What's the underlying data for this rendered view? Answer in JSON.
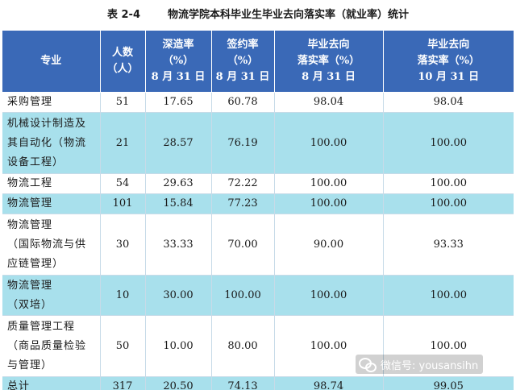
{
  "caption": {
    "number": "表 2-4",
    "title": "物流学院本科毕业生毕业去向落实率（就业率）统计"
  },
  "headers": [
    [
      "专业"
    ],
    [
      "人数",
      "（人）"
    ],
    [
      "深造率",
      "（%）",
      "8 月 31 日"
    ],
    [
      "签约率",
      "（%）",
      "8 月 31 日"
    ],
    [
      "毕业去向",
      "落实率（%）",
      "8 月 31 日"
    ],
    [
      "毕业去向",
      "落实率（%）",
      "10 月 31 日"
    ]
  ],
  "rows": [
    {
      "name": "采购管理",
      "count": "51",
      "further_study": "17.65",
      "signing": "60.78",
      "placement_aug": "98.04",
      "placement_oct": "98.04",
      "alt": false,
      "height": 23
    },
    {
      "name": "机械设计制造及\n其自动化（物流\n设备工程）",
      "count": "21",
      "further_study": "28.57",
      "signing": "76.19",
      "placement_aug": "100.00",
      "placement_oct": "100.00",
      "alt": true,
      "height": 76
    },
    {
      "name": "物流工程",
      "count": "54",
      "further_study": "29.63",
      "signing": "72.22",
      "placement_aug": "100.00",
      "placement_oct": "100.00",
      "alt": false,
      "height": 24
    },
    {
      "name": "物流管理",
      "count": "101",
      "further_study": "15.84",
      "signing": "77.23",
      "placement_aug": "100.00",
      "placement_oct": "100.00",
      "alt": true,
      "height": 24
    },
    {
      "name": "物流管理\n（国际物流与供\n应链管理）",
      "count": "30",
      "further_study": "33.33",
      "signing": "70.00",
      "placement_aug": "90.00",
      "placement_oct": "93.33",
      "alt": false,
      "height": 76
    },
    {
      "name": "物流管理\n（双培）",
      "count": "10",
      "further_study": "30.00",
      "signing": "100.00",
      "placement_aug": "100.00",
      "placement_oct": "100.00",
      "alt": true,
      "height": 50
    },
    {
      "name": "质量管理工程\n（商品质量检验\n与管理）",
      "count": "50",
      "further_study": "10.00",
      "signing": "80.00",
      "placement_aug": "100.00",
      "placement_oct": "100.00",
      "alt": false,
      "height": 76
    },
    {
      "name": "总计",
      "count": "317",
      "further_study": "20.50",
      "signing": "74.13",
      "placement_aug": "98.74",
      "placement_oct": "99.05",
      "alt": true,
      "height": 24
    }
  ],
  "watermark": {
    "icon": "wechat-icon",
    "text": "微信号: yousansihn"
  }
}
